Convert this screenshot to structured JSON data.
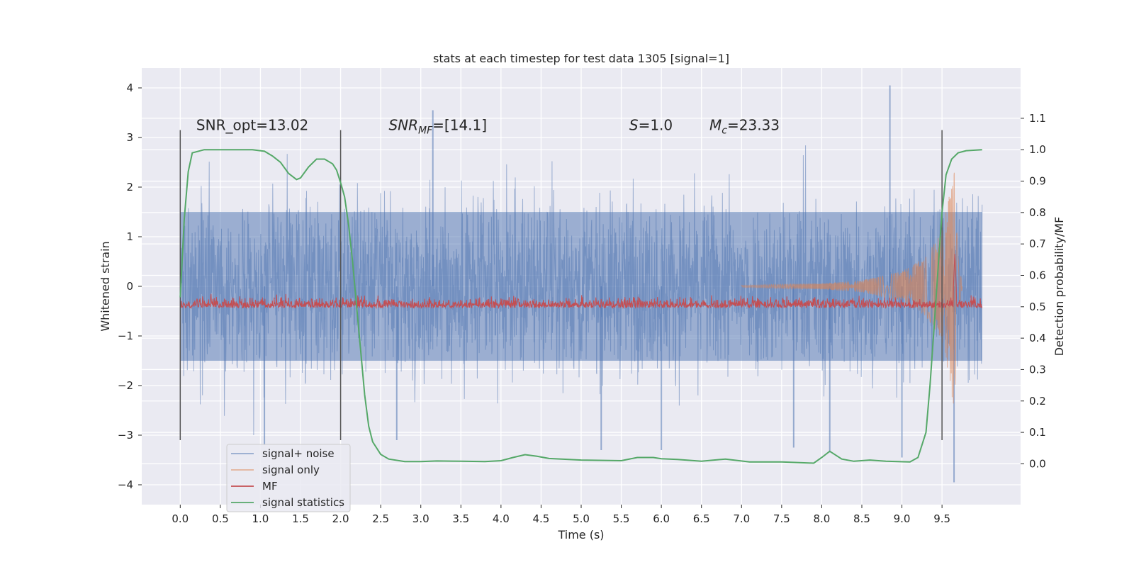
{
  "chart_data": {
    "type": "line",
    "title": "stats at each timestep for test data 1305 [signal=1]",
    "xlabel": "Time (s)",
    "ylabel": "Whitened strain",
    "ylabel_right": "Detection probability/MF",
    "xlim": [
      -0.48,
      10.48
    ],
    "ylim": [
      -4.4,
      4.4
    ],
    "ylim_right": [
      -0.13,
      1.26
    ],
    "x_ticks": [
      0.0,
      0.5,
      1.0,
      1.5,
      2.0,
      2.5,
      3.0,
      3.5,
      4.0,
      4.5,
      5.0,
      5.5,
      6.0,
      6.5,
      7.0,
      7.5,
      8.0,
      8.5,
      9.0,
      9.5
    ],
    "x_tick_labels": [
      "0.0",
      "0.5",
      "1.0",
      "1.5",
      "2.0",
      "2.5",
      "3.0",
      "3.5",
      "4.0",
      "4.5",
      "5.0",
      "5.5",
      "6.0",
      "6.5",
      "7.0",
      "7.5",
      "8.0",
      "8.5",
      "9.0",
      "9.5"
    ],
    "y_ticks": [
      -4,
      -3,
      -2,
      -1,
      0,
      1,
      2,
      3,
      4
    ],
    "y_tick_labels": [
      "−4",
      "−3",
      "−2",
      "−1",
      "0",
      "1",
      "2",
      "3",
      "4"
    ],
    "y2_ticks": [
      0.0,
      0.1,
      0.2,
      0.3,
      0.4,
      0.5,
      0.6,
      0.7,
      0.8,
      0.9,
      1.0,
      1.1
    ],
    "y2_tick_labels": [
      "0.0",
      "0.1",
      "0.2",
      "0.3",
      "0.4",
      "0.5",
      "0.6",
      "0.7",
      "0.8",
      "0.9",
      "1.0",
      "1.1"
    ],
    "grid": true,
    "legend_position": "lower-left",
    "annotations": [
      {
        "text": "SNR_opt=13.02",
        "x": 0.2,
        "y": 3.25
      },
      {
        "text": "SNR_MF=[14.1]",
        "x": 2.6,
        "y": 3.25
      },
      {
        "text": "S=1.0",
        "x": 5.6,
        "y": 3.25
      },
      {
        "text": "M_c=23.33",
        "x": 6.6,
        "y": 3.25
      }
    ],
    "vlines": [
      {
        "x": 0.0,
        "ymin": -3.1,
        "ymax": 3.15
      },
      {
        "x": 2.0,
        "ymin": -3.1,
        "ymax": 3.15
      },
      {
        "x": 9.5,
        "ymin": -3.1,
        "ymax": 3.15
      }
    ],
    "series": [
      {
        "name": "signal+ noise",
        "color": "#4c72b0",
        "axis": "left",
        "style": "dense noise band",
        "x_range": [
          0.0,
          10.0
        ],
        "band_core": [
          -1.5,
          1.5
        ],
        "typical_peak": [
          -2.5,
          2.5
        ],
        "outliers": [
          {
            "x": 3.15,
            "y": 3.55
          },
          {
            "x": 8.85,
            "y": 4.05
          },
          {
            "x": 9.65,
            "y": -3.95
          },
          {
            "x": 9.0,
            "y": -3.45
          },
          {
            "x": 8.1,
            "y": -3.35
          },
          {
            "x": 7.65,
            "y": -3.25
          },
          {
            "x": 5.25,
            "y": -3.3
          },
          {
            "x": 1.05,
            "y": -3.2
          },
          {
            "x": 6.0,
            "y": -3.3
          },
          {
            "x": 2.7,
            "y": -3.1
          }
        ]
      },
      {
        "name": "signal only",
        "color": "#dd8452",
        "axis": "left",
        "style": "chirp",
        "points": [
          [
            7.0,
            0.02
          ],
          [
            8.0,
            0.06
          ],
          [
            8.5,
            0.12
          ],
          [
            9.0,
            0.3
          ],
          [
            9.3,
            0.6
          ],
          [
            9.5,
            1.1
          ],
          [
            9.6,
            1.9
          ],
          [
            9.65,
            2.55
          ],
          [
            9.7,
            0.6
          ],
          [
            9.75,
            0.05
          ]
        ]
      },
      {
        "name": "MF",
        "color": "#c44e52",
        "axis": "right",
        "baseline": 0.5,
        "noise_amplitude": 0.025,
        "peak": {
          "x": 9.66,
          "y": 0.67
        }
      },
      {
        "name": "signal statistics",
        "color": "#55a868",
        "axis": "right",
        "points": [
          [
            0.0,
            0.53
          ],
          [
            0.05,
            0.78
          ],
          [
            0.1,
            0.93
          ],
          [
            0.15,
            0.99
          ],
          [
            0.3,
            1.0
          ],
          [
            0.6,
            1.0
          ],
          [
            0.9,
            1.0
          ],
          [
            1.05,
            0.995
          ],
          [
            1.15,
            0.98
          ],
          [
            1.25,
            0.96
          ],
          [
            1.35,
            0.925
          ],
          [
            1.45,
            0.905
          ],
          [
            1.5,
            0.91
          ],
          [
            1.6,
            0.945
          ],
          [
            1.7,
            0.97
          ],
          [
            1.8,
            0.97
          ],
          [
            1.9,
            0.955
          ],
          [
            1.95,
            0.935
          ],
          [
            2.0,
            0.895
          ],
          [
            2.05,
            0.85
          ],
          [
            2.1,
            0.76
          ],
          [
            2.15,
            0.64
          ],
          [
            2.2,
            0.5
          ],
          [
            2.25,
            0.36
          ],
          [
            2.3,
            0.22
          ],
          [
            2.35,
            0.12
          ],
          [
            2.4,
            0.07
          ],
          [
            2.5,
            0.03
          ],
          [
            2.6,
            0.015
          ],
          [
            2.8,
            0.007
          ],
          [
            3.0,
            0.007
          ],
          [
            3.2,
            0.009
          ],
          [
            3.5,
            0.008
          ],
          [
            3.8,
            0.007
          ],
          [
            4.0,
            0.01
          ],
          [
            4.15,
            0.02
          ],
          [
            4.3,
            0.029
          ],
          [
            4.45,
            0.024
          ],
          [
            4.6,
            0.017
          ],
          [
            5.0,
            0.012
          ],
          [
            5.5,
            0.01
          ],
          [
            5.7,
            0.02
          ],
          [
            5.9,
            0.02
          ],
          [
            6.0,
            0.016
          ],
          [
            6.2,
            0.014
          ],
          [
            6.5,
            0.008
          ],
          [
            6.8,
            0.015
          ],
          [
            7.1,
            0.006
          ],
          [
            7.5,
            0.006
          ],
          [
            7.9,
            0.002
          ],
          [
            8.0,
            0.02
          ],
          [
            8.1,
            0.04
          ],
          [
            8.25,
            0.015
          ],
          [
            8.4,
            0.008
          ],
          [
            8.6,
            0.012
          ],
          [
            8.8,
            0.008
          ],
          [
            9.1,
            0.006
          ],
          [
            9.2,
            0.02
          ],
          [
            9.3,
            0.1
          ],
          [
            9.35,
            0.25
          ],
          [
            9.4,
            0.43
          ],
          [
            9.45,
            0.62
          ],
          [
            9.5,
            0.8
          ],
          [
            9.55,
            0.92
          ],
          [
            9.62,
            0.97
          ],
          [
            9.7,
            0.99
          ],
          [
            9.8,
            0.997
          ],
          [
            10.0,
            1.0
          ]
        ]
      }
    ]
  }
}
